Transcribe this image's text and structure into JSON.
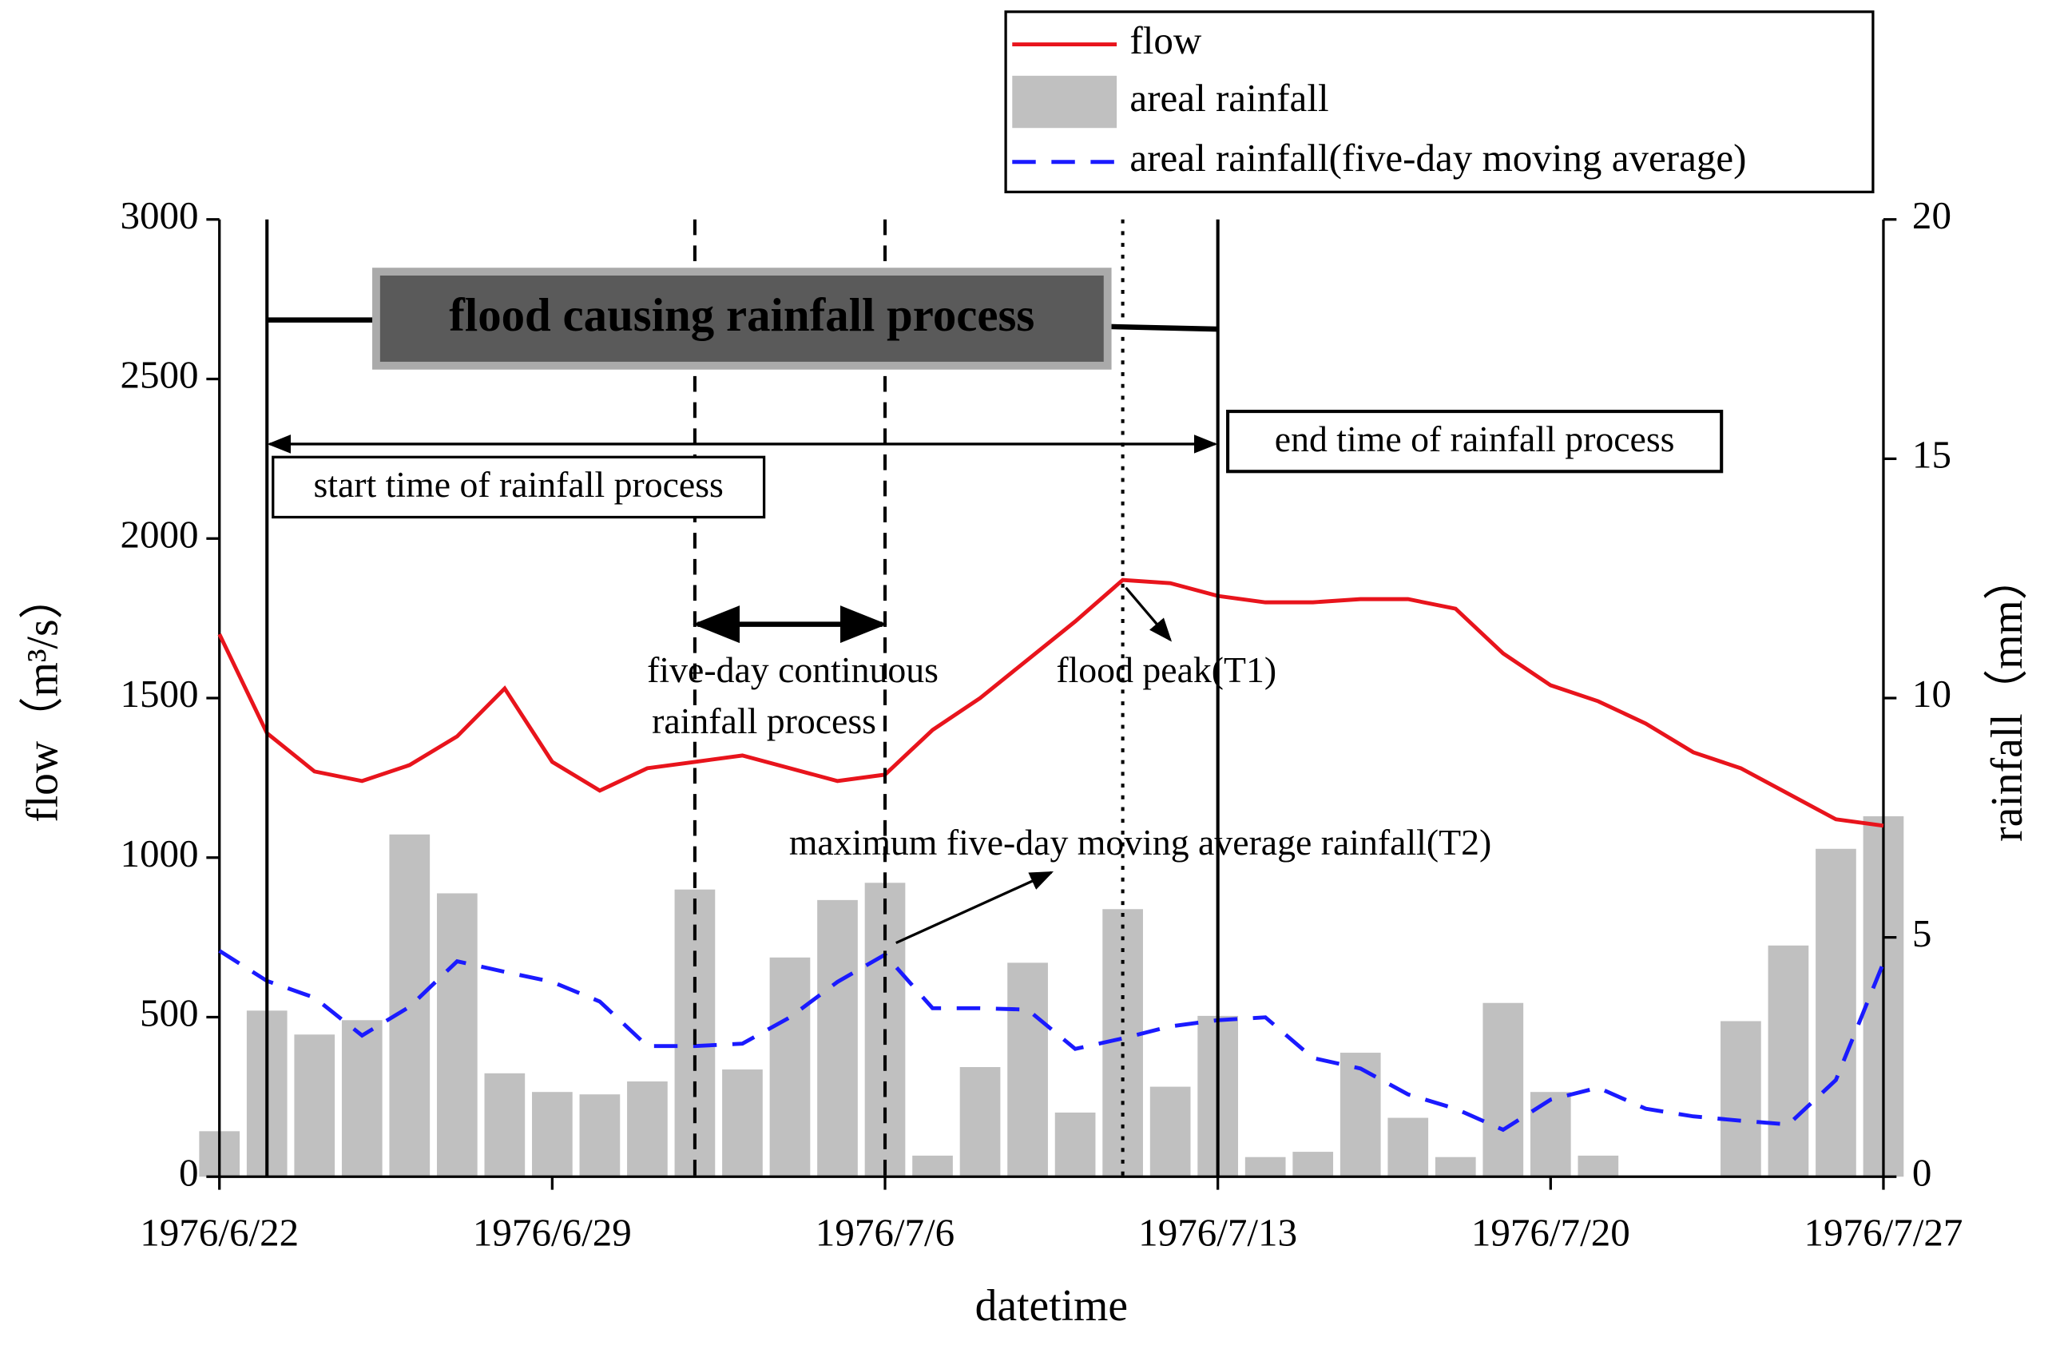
{
  "chart_data": {
    "type": "bar-line",
    "x_label": "datetime",
    "y_label": "flow（m³/s）",
    "y2_label": "rainfall（mm）",
    "categories": [
      "1976/6/22",
      null,
      null,
      null,
      null,
      null,
      null,
      "1976/6/29",
      null,
      null,
      null,
      null,
      null,
      null,
      "1976/7/6",
      null,
      null,
      null,
      null,
      null,
      null,
      "1976/7/13",
      null,
      null,
      null,
      null,
      null,
      null,
      "1976/7/20",
      null,
      null,
      null,
      null,
      null,
      null,
      "1976/7/27"
    ],
    "series": [
      {
        "name": "flow",
        "color": "#e8141c",
        "type": "line",
        "values": [
          1700,
          1390,
          1270,
          1240,
          1290,
          1380,
          1530,
          1300,
          1210,
          1280,
          1300,
          1320,
          1280,
          1240,
          1260,
          1400,
          1500,
          1620,
          1740,
          1870,
          1860,
          1820,
          1800,
          1800,
          1810,
          1810,
          1780,
          1640,
          1540,
          1490,
          1420,
          1330,
          1280,
          1200,
          1120,
          1100
        ]
      },
      {
        "name": "areal rainfall",
        "color": "#c0c0c0",
        "type": "bar",
        "axis": "y2",
        "values": [
          0.95,
          3.47,
          2.97,
          3.27,
          7.15,
          5.92,
          2.16,
          1.77,
          1.72,
          1.99,
          6.0,
          2.24,
          4.58,
          5.78,
          6.14,
          0.44,
          2.29,
          4.47,
          1.34,
          5.59,
          1.88,
          3.36,
          0.41,
          0.52,
          2.59,
          1.23,
          0.41,
          3.63,
          1.77,
          0.44,
          0.02,
          0.02,
          3.25,
          4.83,
          6.85,
          7.53
        ]
      },
      {
        "name": "areal rainfall(five-day moving average)",
        "color": "#1a1aff",
        "type": "dashed-line",
        "axis": "y2",
        "values": [
          4.72,
          4.09,
          3.74,
          2.95,
          3.55,
          4.5,
          4.28,
          4.07,
          3.66,
          2.73,
          2.73,
          2.78,
          3.33,
          4.07,
          4.64,
          3.52,
          3.52,
          3.49,
          2.67,
          2.89,
          3.14,
          3.27,
          3.33,
          2.48,
          2.26,
          1.72,
          1.42,
          0.98,
          1.61,
          1.86,
          1.42,
          1.26,
          1.17,
          1.09,
          2.02,
          4.47
        ]
      }
    ],
    "ylim": [
      0,
      3000
    ],
    "yticks": [
      0,
      500,
      1000,
      1500,
      2000,
      2500,
      3000
    ],
    "y2lim": [
      0,
      20
    ],
    "y2ticks": [
      0,
      5,
      10,
      15,
      20
    ],
    "annotations": {
      "process": "flood causing rainfall process",
      "start": "start time of rainfall process",
      "end": "end time of rainfall process",
      "five_day_1": "five-day continuous",
      "five_day_2": "rainfall process",
      "peak": "flood peak(T1)",
      "max_avg": "maximum five-day moving average rainfall(T2)"
    }
  }
}
